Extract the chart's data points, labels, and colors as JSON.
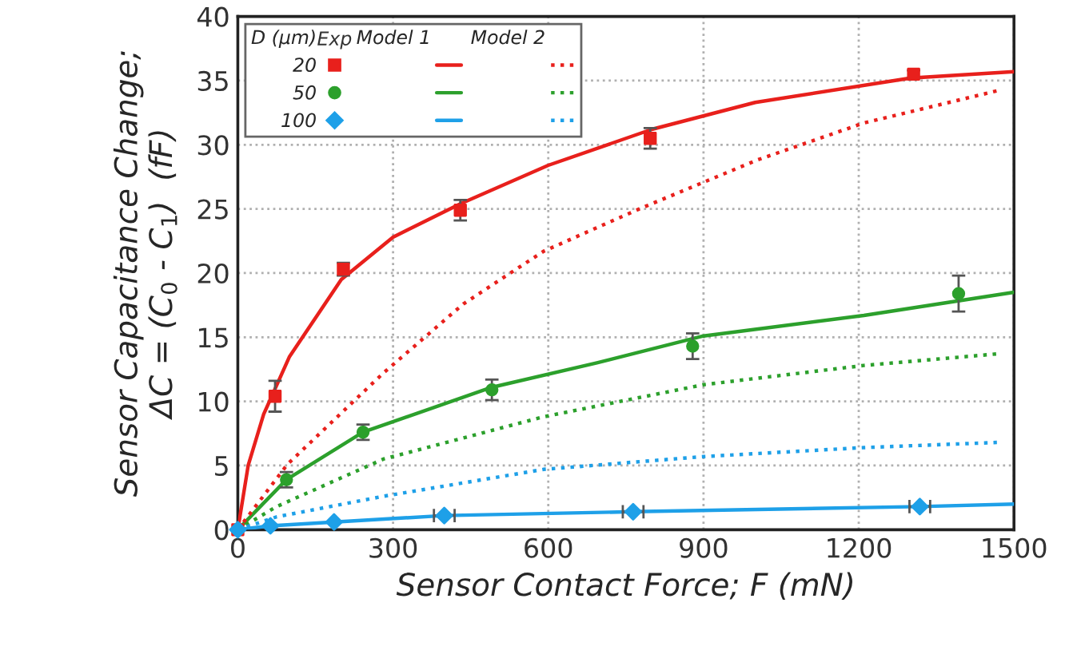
{
  "chart_data": {
    "type": "scatter",
    "xlabel": "Sensor Contact Force; F (mN)",
    "ylabel": "Sensor Capacitance Change;\nΔC = (C$_{0}$ - C$_{1}$)  (fF)",
    "legend_title": "D (μm)",
    "annotations": [
      "Exp",
      "Model 1",
      "Model 2"
    ],
    "xlim": [
      0,
      1500
    ],
    "xticks": [
      0,
      300,
      600,
      900,
      1200,
      1500
    ],
    "ylim": [
      0,
      40
    ],
    "yticks": [
      0,
      5,
      10,
      15,
      20,
      25,
      30,
      35,
      40
    ],
    "grid": true,
    "legend": "top left",
    "series": [
      {
        "name": "20",
        "marker": "square",
        "color": "#e8201c",
        "x": [
          0,
          72,
          204,
          430,
          797,
          1306
        ],
        "values": [
          0,
          10.4,
          20.3,
          24.9,
          30.5,
          35.5
        ],
        "errors": [
          null,
          1.2,
          0.5,
          0.8,
          0.8,
          0.3
        ]
      },
      {
        "name": "50",
        "marker": "circle",
        "color": "#2ca02c",
        "x": [
          0,
          94,
          242,
          491,
          879,
          1393
        ],
        "values": [
          0,
          3.9,
          7.6,
          10.9,
          14.3,
          18.4
        ],
        "errors": [
          null,
          0.6,
          0.6,
          0.8,
          1.0,
          1.4
        ]
      },
      {
        "name": "100",
        "marker": "diamond",
        "color": "#1ea0e8",
        "x": [
          0,
          63,
          186,
          399,
          764,
          1318
        ],
        "values": [
          0,
          0.3,
          0.6,
          1.1,
          1.4,
          1.8
        ],
        "xerrors": [
          null,
          null,
          null,
          20,
          20,
          20
        ]
      },
      {
        "type": "line",
        "line_style": "solid",
        "color": "#e8201c",
        "x": [
          0,
          20,
          50,
          100,
          200,
          300,
          430,
          600,
          800,
          1000,
          1300,
          1500
        ],
        "values": [
          0,
          5,
          9,
          13.5,
          19.5,
          22.8,
          25.4,
          28.4,
          31.2,
          33.3,
          35.2,
          35.7
        ]
      },
      {
        "type": "line",
        "line_style": "solid",
        "color": "#2ca02c",
        "x": [
          0,
          94,
          242,
          491,
          694,
          900,
          1210,
          1500
        ],
        "values": [
          0,
          3.9,
          7.6,
          11.1,
          13.0,
          15.1,
          16.7,
          18.5
        ]
      },
      {
        "type": "line",
        "line_style": "solid",
        "color": "#1ea0e8",
        "x": [
          0,
          63,
          186,
          399,
          764,
          1318,
          1500
        ],
        "values": [
          0,
          0.3,
          0.6,
          1.1,
          1.4,
          1.8,
          2.0
        ]
      },
      {
        "type": "line",
        "line_style": "dotted",
        "color": "#e8201c",
        "x": [
          0,
          96,
          281,
          436,
          591,
          776,
          1003,
          1210,
          1467
        ],
        "values": [
          0,
          5.1,
          12.2,
          17.6,
          21.7,
          25.0,
          28.8,
          31.7,
          34.2
        ]
      },
      {
        "type": "line",
        "line_style": "dotted",
        "color": "#2ca02c",
        "x": [
          0,
          75,
          281,
          591,
          900,
          1210,
          1467
        ],
        "values": [
          0,
          1.8,
          5.5,
          8.8,
          11.3,
          12.8,
          13.7
        ]
      },
      {
        "type": "line",
        "line_style": "dotted",
        "color": "#1ea0e8",
        "x": [
          0,
          75,
          281,
          591,
          900,
          1210,
          1467
        ],
        "values": [
          0,
          1.0,
          2.6,
          4.7,
          5.7,
          6.4,
          6.8
        ]
      }
    ]
  }
}
